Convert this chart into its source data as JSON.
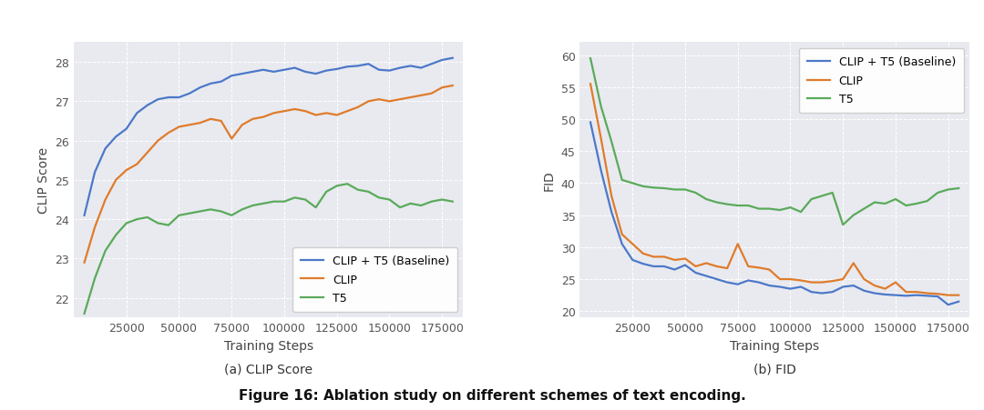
{
  "clip_steps": [
    5000,
    10000,
    15000,
    20000,
    25000,
    30000,
    35000,
    40000,
    45000,
    50000,
    55000,
    60000,
    65000,
    70000,
    75000,
    80000,
    85000,
    90000,
    95000,
    100000,
    105000,
    110000,
    115000,
    120000,
    125000,
    130000,
    135000,
    140000,
    145000,
    150000,
    155000,
    160000,
    165000,
    170000,
    175000,
    180000
  ],
  "clip_baseline": [
    24.1,
    25.2,
    25.8,
    26.1,
    26.3,
    26.7,
    26.9,
    27.05,
    27.1,
    27.1,
    27.2,
    27.35,
    27.45,
    27.5,
    27.65,
    27.7,
    27.75,
    27.8,
    27.75,
    27.8,
    27.85,
    27.75,
    27.7,
    27.78,
    27.82,
    27.88,
    27.9,
    27.95,
    27.8,
    27.78,
    27.85,
    27.9,
    27.85,
    27.95,
    28.05,
    28.1
  ],
  "clip_clip": [
    22.9,
    23.8,
    24.5,
    25.0,
    25.25,
    25.4,
    25.7,
    26.0,
    26.2,
    26.35,
    26.4,
    26.45,
    26.55,
    26.5,
    26.05,
    26.4,
    26.55,
    26.6,
    26.7,
    26.75,
    26.8,
    26.75,
    26.65,
    26.7,
    26.65,
    26.75,
    26.85,
    27.0,
    27.05,
    27.0,
    27.05,
    27.1,
    27.15,
    27.2,
    27.35,
    27.4
  ],
  "clip_t5": [
    21.6,
    22.5,
    23.2,
    23.6,
    23.9,
    24.0,
    24.05,
    23.9,
    23.85,
    24.1,
    24.15,
    24.2,
    24.25,
    24.2,
    24.1,
    24.25,
    24.35,
    24.4,
    24.45,
    24.45,
    24.55,
    24.5,
    24.3,
    24.7,
    24.85,
    24.9,
    24.75,
    24.7,
    24.55,
    24.5,
    24.3,
    24.4,
    24.35,
    24.45,
    24.5,
    24.45
  ],
  "fid_steps": [
    5000,
    10000,
    15000,
    20000,
    25000,
    30000,
    35000,
    40000,
    45000,
    50000,
    55000,
    60000,
    65000,
    70000,
    75000,
    80000,
    85000,
    90000,
    95000,
    100000,
    105000,
    110000,
    115000,
    120000,
    125000,
    130000,
    135000,
    140000,
    145000,
    150000,
    155000,
    160000,
    165000,
    170000,
    175000,
    180000
  ],
  "fid_baseline": [
    49.5,
    42.0,
    35.5,
    30.5,
    28.0,
    27.4,
    27.0,
    27.0,
    26.5,
    27.2,
    26.0,
    25.5,
    25.0,
    24.5,
    24.2,
    24.8,
    24.5,
    24.0,
    23.8,
    23.5,
    23.8,
    23.0,
    22.8,
    23.0,
    23.8,
    24.0,
    23.2,
    22.8,
    22.6,
    22.5,
    22.4,
    22.5,
    22.4,
    22.3,
    21.0,
    21.5
  ],
  "fid_clip": [
    55.5,
    47.0,
    38.0,
    32.0,
    30.5,
    29.0,
    28.5,
    28.5,
    28.0,
    28.2,
    27.0,
    27.5,
    27.0,
    26.7,
    30.5,
    27.0,
    26.8,
    26.5,
    25.0,
    25.0,
    24.8,
    24.5,
    24.5,
    24.7,
    25.0,
    27.5,
    25.0,
    24.0,
    23.5,
    24.5,
    23.0,
    23.0,
    22.8,
    22.7,
    22.5,
    22.5
  ],
  "fid_t5": [
    59.5,
    52.0,
    46.5,
    40.5,
    40.0,
    39.5,
    39.3,
    39.2,
    39.0,
    39.0,
    38.5,
    37.5,
    37.0,
    36.7,
    36.5,
    36.5,
    36.0,
    36.0,
    35.8,
    36.2,
    35.5,
    37.5,
    38.0,
    38.5,
    33.5,
    35.0,
    36.0,
    37.0,
    36.8,
    37.5,
    36.5,
    36.8,
    37.2,
    38.5,
    39.0,
    39.2
  ],
  "color_baseline": "#4c78c8",
  "color_clip": "#e07b2a",
  "color_t5": "#5aaa5a",
  "label_baseline": "CLIP + T5 (Baseline)",
  "label_clip": "CLIP",
  "label_t5": "T5",
  "clip_ylabel": "CLIP Score",
  "fid_ylabel": "FID",
  "xlabel": "Training Steps",
  "clip_ylim": [
    21.5,
    28.5
  ],
  "fid_ylim": [
    19,
    62
  ],
  "clip_yticks": [
    22,
    23,
    24,
    25,
    26,
    27,
    28
  ],
  "fid_yticks": [
    20,
    25,
    30,
    35,
    40,
    45,
    50,
    55,
    60
  ],
  "clip_xticks": [
    25000,
    50000,
    75000,
    100000,
    125000,
    150000,
    175000
  ],
  "fid_xticks": [
    25000,
    50000,
    75000,
    100000,
    125000,
    150000,
    175000
  ],
  "caption_a": "(a) CLIP Score",
  "caption_b": "(b) FID",
  "figure_caption": "Figure 16: Ablation study on different schemes of text encoding.",
  "bg_color": "#e8eaf0",
  "line_width": 1.6,
  "grid_color": "#ffffff",
  "grid_alpha": 1.0,
  "grid_style": "--",
  "grid_lw": 0.7
}
